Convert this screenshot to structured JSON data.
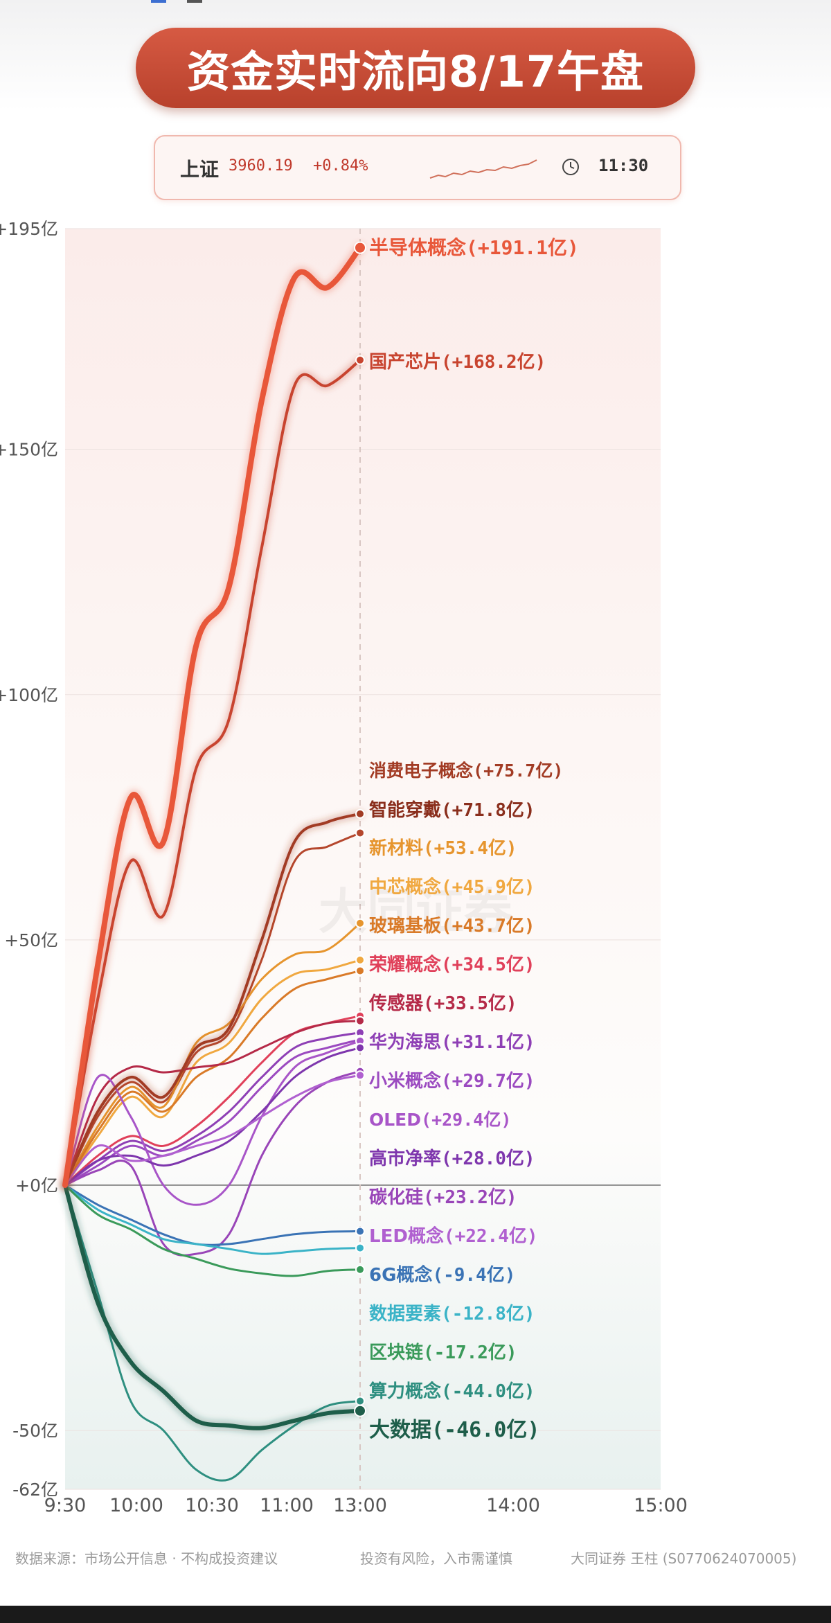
{
  "title": "资金实时流向8/17午盘",
  "index": {
    "name": "上证",
    "value": "3960.19",
    "change": "+0.84%",
    "time": "11:30"
  },
  "icons": [
    "sparkline-icon",
    "clock-icon"
  ],
  "footer": {
    "source": "数据来源：市场公开信息 · 不构成投资建议",
    "risk": "投资有风险，入市需谨慎",
    "author": "大同证券 王柱 (S0770624070005)"
  },
  "chart_data": {
    "type": "line",
    "y_ticks": [
      {
        "value": 195,
        "label": "+195亿"
      },
      {
        "value": 150,
        "label": "+150亿"
      },
      {
        "value": 100,
        "label": "+100亿"
      },
      {
        "value": 50,
        "label": "+50亿"
      },
      {
        "value": 0,
        "label": "+0亿"
      },
      {
        "value": -50,
        "label": "-50亿"
      },
      {
        "value": -62,
        "label": "-62亿"
      }
    ],
    "x_ticks": [
      "9:30",
      "10:00",
      "10:30",
      "11:00",
      "13:00",
      "14:00",
      "15:00"
    ],
    "ylim": [
      -62,
      195
    ],
    "grid": true,
    "series": [
      {
        "name": "半导体概念",
        "label": "(+191.1亿)",
        "color": "#e8573a",
        "width": 8,
        "values": [
          0,
          45,
          79,
          70,
          110,
          122,
          160,
          185,
          183,
          191.1
        ]
      },
      {
        "name": "国产芯片",
        "label": "(+168.2亿)",
        "color": "#c8442f",
        "width": 4,
        "values": [
          0,
          38,
          66,
          55,
          85,
          95,
          130,
          163,
          163,
          168.2
        ]
      },
      {
        "name": "消费电子概念",
        "label": "(+75.7亿)",
        "color": "#a23b24",
        "width": 4,
        "values": [
          0,
          15,
          22,
          18,
          28,
          32,
          50,
          70,
          74,
          75.7
        ]
      },
      {
        "name": "智能穿戴",
        "label": "(+71.8亿)",
        "color": "#b5472d",
        "width": 3,
        "values": [
          0,
          14,
          21,
          17,
          27,
          31,
          46,
          66,
          69,
          71.8
        ]
      },
      {
        "name": "新材料",
        "label": "(+53.4亿)",
        "color": "#e6952e",
        "width": 3,
        "values": [
          0,
          12,
          20,
          16,
          29,
          33,
          42,
          47,
          48,
          53.4
        ]
      },
      {
        "name": "中芯概念",
        "label": "(+45.9亿)",
        "color": "#f0a840",
        "width": 3,
        "values": [
          0,
          10,
          18,
          14,
          25,
          29,
          38,
          43,
          44,
          45.9
        ]
      },
      {
        "name": "玻璃基板",
        "label": "(+43.7亿)",
        "color": "#d97a28",
        "width": 3,
        "values": [
          0,
          11,
          19,
          15,
          22,
          26,
          34,
          40,
          42,
          43.7
        ]
      },
      {
        "name": "荣耀概念",
        "label": "(+34.5亿)",
        "color": "#e0405a",
        "width": 3,
        "values": [
          0,
          6,
          10,
          8,
          12,
          18,
          25,
          31,
          33,
          34.5
        ]
      },
      {
        "name": "传感器",
        "label": "(+33.5亿)",
        "color": "#b52a48",
        "width": 3,
        "values": [
          0,
          18,
          24,
          23,
          24,
          25,
          28,
          31,
          33,
          33.5
        ]
      },
      {
        "name": "华为海思",
        "label": "(+31.1亿)",
        "color": "#8e3fb5",
        "width": 3,
        "values": [
          0,
          5,
          9,
          7,
          10,
          15,
          22,
          28,
          30,
          31.1
        ]
      },
      {
        "name": "小米概念",
        "label": "(+29.7亿)",
        "color": "#9b4ac0",
        "width": 3,
        "values": [
          0,
          4,
          8,
          6,
          9,
          13,
          20,
          26,
          28,
          29.7
        ]
      },
      {
        "name": "OLED",
        "label": "(+29.4亿)",
        "color": "#a855c8",
        "width": 3,
        "values": [
          0,
          22,
          14,
          0,
          -4,
          0,
          14,
          24,
          27,
          29.4
        ]
      },
      {
        "name": "高市净率",
        "label": "(+28.0亿)",
        "color": "#7e36ad",
        "width": 3,
        "values": [
          0,
          5,
          6,
          4,
          6,
          9,
          15,
          22,
          26,
          28.0
        ]
      },
      {
        "name": "碳化硅",
        "label": "(+23.2亿)",
        "color": "#9945b8",
        "width": 3,
        "values": [
          0,
          3,
          4,
          -12,
          -14,
          -10,
          6,
          16,
          21,
          23.2
        ]
      },
      {
        "name": "LED概念",
        "label": "(+22.4亿)",
        "color": "#b060d0",
        "width": 3,
        "values": [
          0,
          8,
          5,
          6,
          8,
          10,
          14,
          18,
          21,
          22.4
        ]
      },
      {
        "name": "6G概念",
        "label": "(-9.4亿)",
        "color": "#3a73b5",
        "width": 3,
        "values": [
          0,
          -4,
          -7,
          -10,
          -12,
          -12,
          -11,
          -10,
          -9.5,
          -9.4
        ]
      },
      {
        "name": "数据要素",
        "label": "(-12.8亿)",
        "color": "#3ab3c7",
        "width": 3,
        "values": [
          0,
          -5,
          -8,
          -11,
          -12,
          -13,
          -14,
          -13.5,
          -13,
          -12.8
        ]
      },
      {
        "name": "区块链",
        "label": "(-17.2亿)",
        "color": "#3a9a5a",
        "width": 3,
        "values": [
          0,
          -6,
          -9,
          -13,
          -15,
          -17,
          -18,
          -18.5,
          -17.5,
          -17.2
        ]
      },
      {
        "name": "算力概念",
        "label": "(-44.0亿)",
        "color": "#2e8f80",
        "width": 3,
        "values": [
          0,
          -22,
          -44,
          -50,
          -58,
          -60,
          -54,
          -49,
          -45,
          -44.0
        ]
      },
      {
        "name": "大数据",
        "label": "(-46.0亿)",
        "color": "#1e5e4a",
        "width": 6,
        "values": [
          0,
          -24,
          -36,
          -42,
          -48,
          -49,
          -49.5,
          -48,
          -46.5,
          -46.0
        ]
      }
    ],
    "end_labels": [
      {
        "name": "半导体概念",
        "label": "(+191.1亿)",
        "color": "#e8573a",
        "size": 28
      },
      {
        "name": "国产芯片",
        "label": "(+168.2亿)",
        "color": "#c8442f",
        "size": 26
      },
      {
        "name": "消费电子概念",
        "label": "(+75.7亿)",
        "color": "#a23b24",
        "size": 25
      },
      {
        "name": "智能穿戴",
        "label": "(+71.8亿)",
        "color": "#8a2e1c",
        "size": 26
      },
      {
        "name": "新材料",
        "label": "(+53.4亿)",
        "color": "#e6952e",
        "size": 26
      },
      {
        "name": "中芯概念",
        "label": "(+45.9亿)",
        "color": "#f0a840",
        "size": 26
      },
      {
        "name": "玻璃基板",
        "label": "(+43.7亿)",
        "color": "#d97a28",
        "size": 26
      },
      {
        "name": "荣耀概念",
        "label": "(+34.5亿)",
        "color": "#e0405a",
        "size": 26
      },
      {
        "name": "传感器",
        "label": "(+33.5亿)",
        "color": "#b52a48",
        "size": 26
      },
      {
        "name": "华为海思",
        "label": "(+31.1亿)",
        "color": "#8e3fb5",
        "size": 26
      },
      {
        "name": "小米概念",
        "label": "(+29.7亿)",
        "color": "#9b4ac0",
        "size": 26
      },
      {
        "name": "OLED",
        "label": "(+29.4亿)",
        "color": "#a855c8",
        "size": 25
      },
      {
        "name": "高市净率",
        "label": "(+28.0亿)",
        "color": "#7e36ad",
        "size": 26
      },
      {
        "name": "碳化硅",
        "label": "(+23.2亿)",
        "color": "#9945b8",
        "size": 26
      },
      {
        "name": "LED概念",
        "label": "(+22.4亿)",
        "color": "#b060d0",
        "size": 26
      },
      {
        "name": "6G概念",
        "label": "(-9.4亿)",
        "color": "#3a73b5",
        "size": 26
      },
      {
        "name": "数据要素",
        "label": "(-12.8亿)",
        "color": "#3ab3c7",
        "size": 26
      },
      {
        "name": "区块链",
        "label": "(-17.2亿)",
        "color": "#3a9a5a",
        "size": 26
      },
      {
        "name": "算力概念",
        "label": "(-44.0亿)",
        "color": "#2e8f80",
        "size": 26
      },
      {
        "name": "大数据",
        "label": "(-46.0亿)",
        "color": "#1e5e4a",
        "size": 30
      }
    ],
    "watermark": "大同证券"
  }
}
